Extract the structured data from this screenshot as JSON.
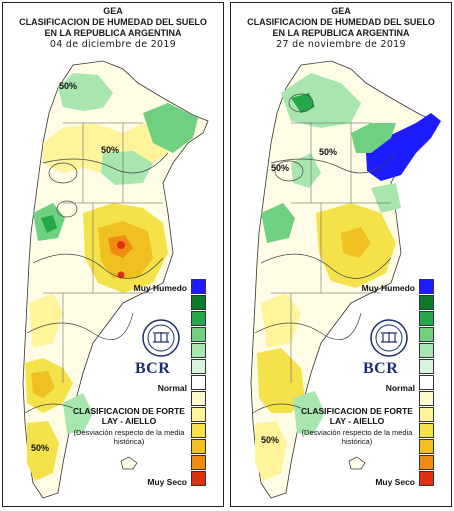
{
  "panels": [
    {
      "agency": "GEA",
      "title_line1": "CLASIFICACION DE HUMEDAD DEL SUELO",
      "title_line2": "EN LA REPUBLICA ARGENTINA",
      "date": "04 de diciembre de 2019",
      "contour_labels": [
        "50%",
        "50%",
        "50%"
      ]
    },
    {
      "agency": "GEA",
      "title_line1": "CLASIFICACION DE HUMEDAD DEL SUELO",
      "title_line2": "EN LA REPUBLICA ARGENTINA",
      "date": "27 de noviembre de 2019",
      "contour_labels": [
        "50%",
        "50%",
        "50%"
      ]
    }
  ],
  "legend": {
    "top_label": "Muy Humedo",
    "middle_label": "Normal",
    "bottom_label": "Muy Seco",
    "classification_title": "CLASIFICACION DE FORTE LAY - AIELLO",
    "deviation_note": "(Desviación respecto de la media histórica)",
    "logo_text": "BCR",
    "colors": [
      "#1c1cff",
      "#0e7a2c",
      "#25a84a",
      "#6fd07f",
      "#a8e6b0",
      "#d8f4dc",
      "#ffffff",
      "#fffad0",
      "#fff49a",
      "#f5e24a",
      "#f0c020",
      "#f08a10",
      "#e03010"
    ]
  },
  "icons": [
    "bcr-seal-icon"
  ]
}
